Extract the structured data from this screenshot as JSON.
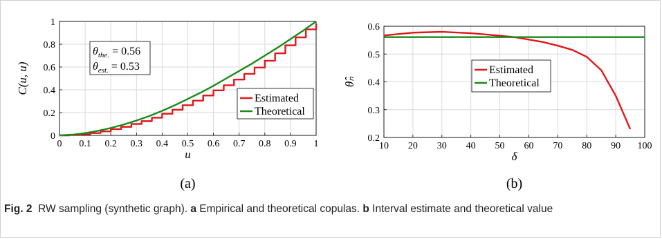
{
  "colors": {
    "estimated": "#e3161b",
    "theoretical": "#1a8a1a",
    "grid": "#d9d9d9",
    "frame": "#cfcfcf"
  },
  "chart_data": [
    {
      "type": "line",
      "panel_label": "(a)",
      "xlabel": "u",
      "ylabel": "C(u, u)",
      "xlim": [
        0,
        1
      ],
      "ylim": [
        0,
        1
      ],
      "xticks": [
        0,
        0.1,
        0.2,
        0.3,
        0.4,
        0.5,
        0.6,
        0.7,
        0.8,
        0.9,
        1
      ],
      "xtick_labels": [
        "0",
        "0.1",
        "0.2",
        "0.3",
        "0.4",
        "0.5",
        "0.6",
        "0.7",
        "0.8",
        "0.9",
        "1"
      ],
      "yticks": [
        0,
        0.2,
        0.4,
        0.6,
        0.8,
        1
      ],
      "ytick_labels": [
        "0",
        "0.2",
        "0.4",
        "0.6",
        "0.8",
        "1"
      ],
      "grid": true,
      "legend_position": "lower-right",
      "annotations": [
        {
          "symbol": "θ",
          "sub": "the.",
          "value": "= 0.56"
        },
        {
          "symbol": "θ",
          "sub": "est.",
          "value": "= 0.53"
        }
      ],
      "series": [
        {
          "name": "Estimated",
          "color": "#e3161b",
          "style": "step",
          "x": [
            0,
            0.04,
            0.08,
            0.12,
            0.16,
            0.2,
            0.24,
            0.28,
            0.32,
            0.36,
            0.4,
            0.44,
            0.48,
            0.52,
            0.56,
            0.6,
            0.64,
            0.68,
            0.72,
            0.76,
            0.8,
            0.84,
            0.88,
            0.92,
            0.96,
            1
          ],
          "y": [
            0,
            0.003,
            0.01,
            0.02,
            0.035,
            0.055,
            0.075,
            0.1,
            0.125,
            0.155,
            0.19,
            0.225,
            0.265,
            0.305,
            0.35,
            0.395,
            0.44,
            0.49,
            0.54,
            0.595,
            0.655,
            0.72,
            0.79,
            0.86,
            0.93,
            0.98
          ]
        },
        {
          "name": "Theoretical",
          "color": "#1a8a1a",
          "style": "line",
          "x": [
            0,
            0.05,
            0.1,
            0.15,
            0.2,
            0.25,
            0.3,
            0.35,
            0.4,
            0.45,
            0.5,
            0.55,
            0.6,
            0.65,
            0.7,
            0.75,
            0.8,
            0.85,
            0.9,
            0.95,
            1
          ],
          "y": [
            0,
            0.006,
            0.02,
            0.04,
            0.065,
            0.095,
            0.13,
            0.17,
            0.215,
            0.265,
            0.32,
            0.375,
            0.435,
            0.5,
            0.565,
            0.63,
            0.7,
            0.77,
            0.845,
            0.92,
            1
          ]
        }
      ]
    },
    {
      "type": "line",
      "panel_label": "(b)",
      "xlabel": "δ",
      "ylabel": "θ̂ₙ",
      "xlim": [
        10,
        100
      ],
      "ylim": [
        0.2,
        0.6
      ],
      "xticks": [
        10,
        20,
        30,
        40,
        50,
        60,
        70,
        80,
        90,
        100
      ],
      "xtick_labels": [
        "10",
        "20",
        "30",
        "40",
        "50",
        "60",
        "70",
        "80",
        "90",
        "100"
      ],
      "yticks": [
        0.2,
        0.3,
        0.4,
        0.5,
        0.6
      ],
      "ytick_labels": [
        "0.2",
        "0.3",
        "0.4",
        "0.5",
        "0.6"
      ],
      "grid": true,
      "legend_position": "center-left",
      "series": [
        {
          "name": "Estimated",
          "color": "#e3161b",
          "style": "line",
          "x": [
            10,
            20,
            30,
            40,
            50,
            55,
            60,
            65,
            70,
            75,
            80,
            85,
            90,
            95
          ],
          "y": [
            0.567,
            0.577,
            0.58,
            0.575,
            0.566,
            0.561,
            0.552,
            0.543,
            0.53,
            0.515,
            0.49,
            0.442,
            0.35,
            0.23
          ]
        },
        {
          "name": "Theoretical",
          "color": "#1a8a1a",
          "style": "line",
          "x": [
            10,
            100
          ],
          "y": [
            0.561,
            0.561
          ]
        }
      ]
    }
  ],
  "caption": {
    "fig_label": "Fig. 2",
    "text_1": "RW sampling (synthetic graph).",
    "part_a_label": "a",
    "part_a_text": "Empirical and theoretical copulas.",
    "part_b_label": "b",
    "part_b_text": "Interval estimate and theoretical value"
  }
}
